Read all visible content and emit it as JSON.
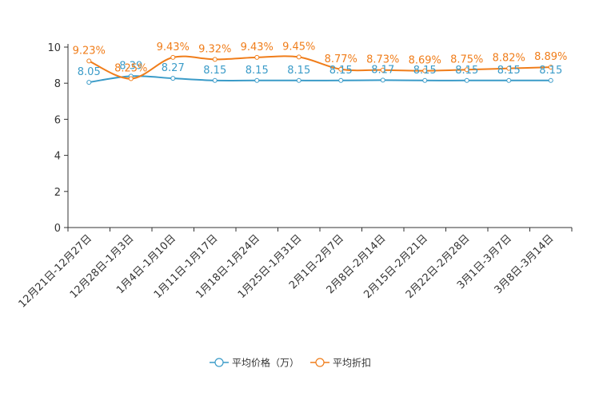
{
  "chart_data": {
    "type": "line",
    "title": "",
    "xlabel": "",
    "ylabel": "",
    "ylim": [
      0,
      10
    ],
    "yticks": [
      0,
      2,
      4,
      6,
      8,
      10
    ],
    "legend_position": "bottom-center",
    "categories": [
      "12月21日-12月27日",
      "12月28日-1月3日",
      "1月4日-1月10日",
      "1月11日-1月17日",
      "1月18日-1月24日",
      "1月25日-1月31日",
      "2月1日-2月7日",
      "2月8日-2月14日",
      "2月15日-2月21日",
      "2月22日-2月28日",
      "3月1日-3月7日",
      "3月8日-3月14日"
    ],
    "series": [
      {
        "name": "平均价格（万）",
        "color": "#3a9bc8",
        "values": [
          8.05,
          8.39,
          8.27,
          8.15,
          8.15,
          8.15,
          8.15,
          8.17,
          8.15,
          8.15,
          8.15,
          8.15
        ],
        "labels": [
          "8.05",
          "8.39",
          "8.27",
          "8.15",
          "8.15",
          "8.15",
          "8.15",
          "8.17",
          "8.15",
          "8.15",
          "8.15",
          "8.15"
        ]
      },
      {
        "name": "平均折扣",
        "color": "#f07d1a",
        "values": [
          9.23,
          8.25,
          9.43,
          9.32,
          9.43,
          9.45,
          8.77,
          8.73,
          8.69,
          8.75,
          8.82,
          8.89
        ],
        "labels": [
          "9.23%",
          "8.25%",
          "9.43%",
          "9.32%",
          "9.43%",
          "9.45%",
          "8.77%",
          "8.73%",
          "8.69%",
          "8.75%",
          "8.82%",
          "8.89%"
        ]
      }
    ]
  }
}
